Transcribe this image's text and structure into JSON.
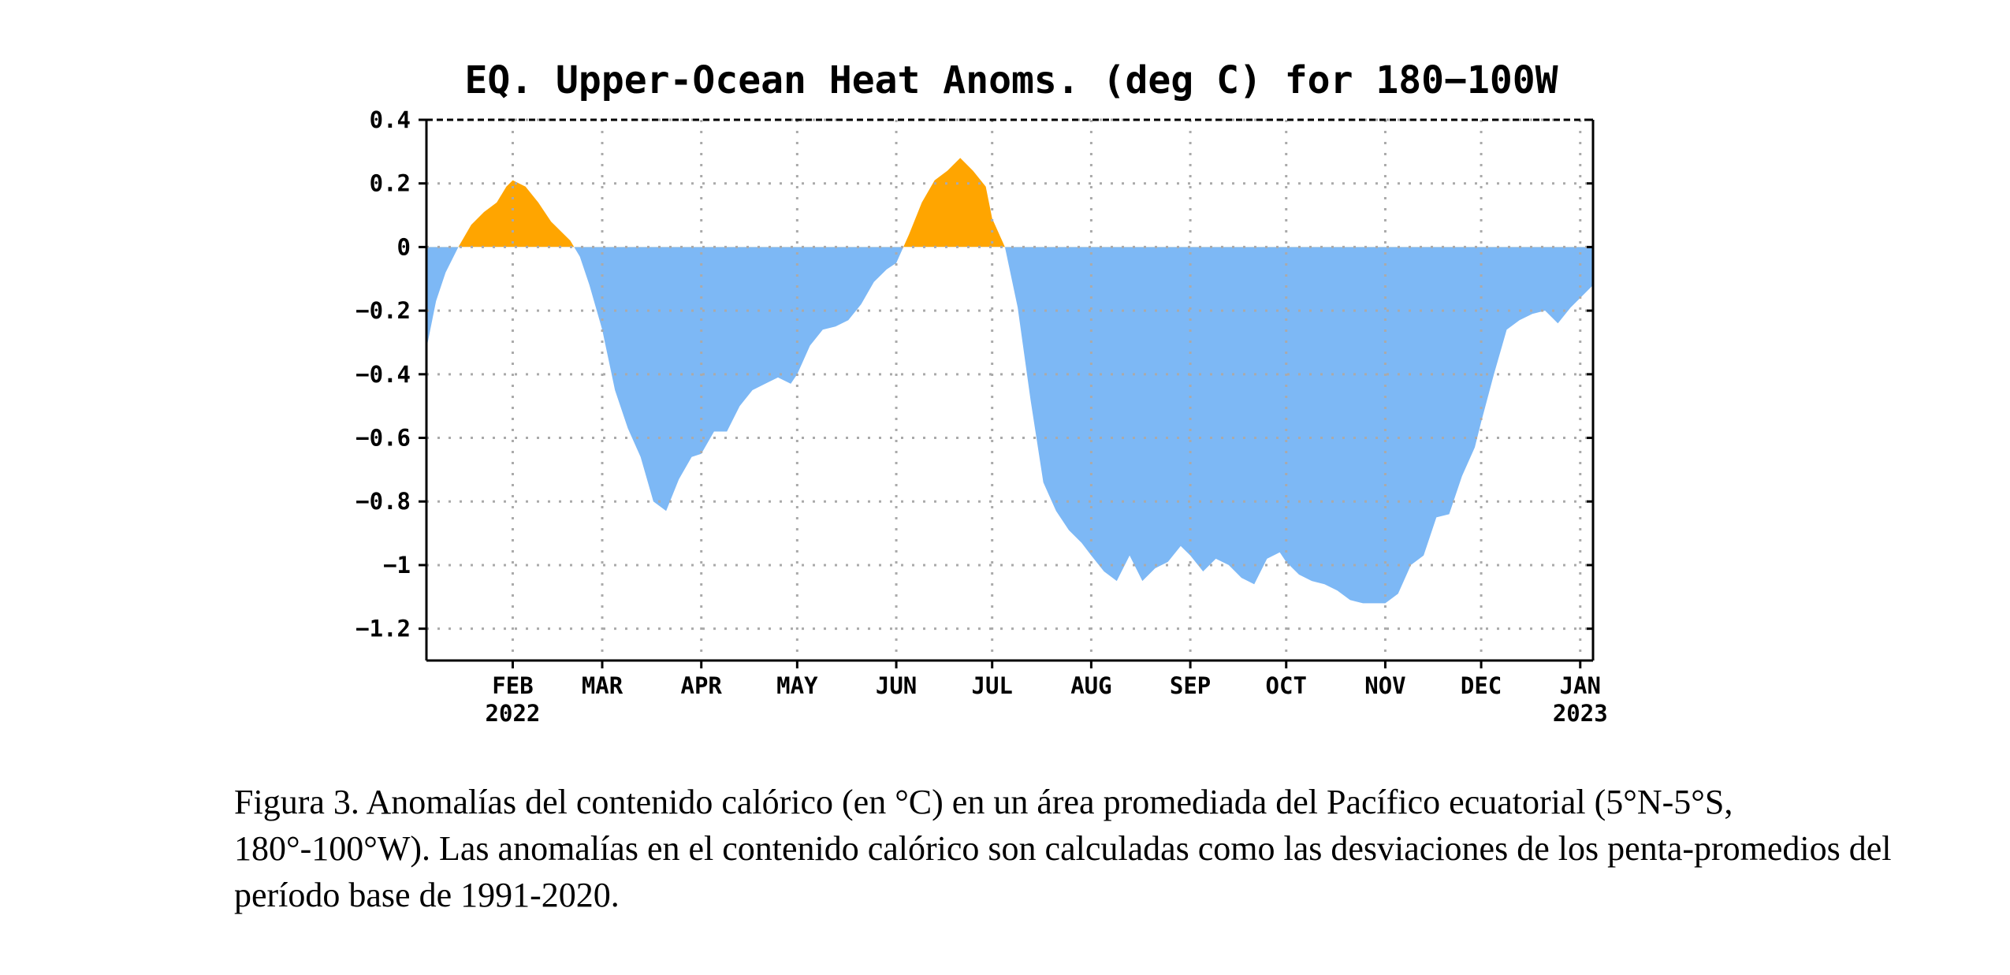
{
  "chart_data": {
    "type": "area",
    "title": "EQ. Upper-Ocean Heat Anoms. (deg C) for 180−100W",
    "xlabel": "",
    "ylabel": "",
    "x_range": [
      "2022-01-05",
      "2023-01-05"
    ],
    "ylim": [
      -1.3,
      0.4
    ],
    "yticks": [
      0.4,
      0.2,
      0,
      -0.2,
      -0.4,
      -0.6,
      -0.8,
      -1,
      -1.2
    ],
    "ytick_labels": [
      "0.4",
      "0.2",
      "0",
      "−0.2",
      "−0.4",
      "−0.6",
      "−0.8",
      "−1",
      "−1.2"
    ],
    "xticks": [
      {
        "date": "2022-02-01",
        "label": "FEB",
        "sublabel": "2022"
      },
      {
        "date": "2022-03-01",
        "label": "MAR",
        "sublabel": ""
      },
      {
        "date": "2022-04-01",
        "label": "APR",
        "sublabel": ""
      },
      {
        "date": "2022-05-01",
        "label": "MAY",
        "sublabel": ""
      },
      {
        "date": "2022-06-01",
        "label": "JUN",
        "sublabel": ""
      },
      {
        "date": "2022-07-01",
        "label": "JUL",
        "sublabel": ""
      },
      {
        "date": "2022-08-01",
        "label": "AUG",
        "sublabel": ""
      },
      {
        "date": "2022-09-01",
        "label": "SEP",
        "sublabel": ""
      },
      {
        "date": "2022-10-01",
        "label": "OCT",
        "sublabel": ""
      },
      {
        "date": "2022-11-01",
        "label": "NOV",
        "sublabel": ""
      },
      {
        "date": "2022-12-01",
        "label": "DEC",
        "sublabel": ""
      },
      {
        "date": "2023-01-01",
        "label": "JAN",
        "sublabel": "2023"
      }
    ],
    "grid": true,
    "colors": {
      "positive": "#ffa500",
      "negative": "#7db8f5"
    },
    "series": [
      {
        "x": [
          "2022-01-05",
          "2022-01-08",
          "2022-01-11",
          "2022-01-15",
          "2022-01-19",
          "2022-01-23",
          "2022-01-27",
          "2022-01-30",
          "2022-02-01",
          "2022-02-05",
          "2022-02-09",
          "2022-02-13",
          "2022-02-17",
          "2022-02-19",
          "2022-02-22",
          "2022-02-25",
          "2022-03-01",
          "2022-03-05",
          "2022-03-09",
          "2022-03-13",
          "2022-03-17",
          "2022-03-21",
          "2022-03-25",
          "2022-03-29",
          "2022-04-01",
          "2022-04-05",
          "2022-04-09",
          "2022-04-13",
          "2022-04-17",
          "2022-04-21",
          "2022-04-25",
          "2022-04-29",
          "2022-05-01",
          "2022-05-05",
          "2022-05-09",
          "2022-05-13",
          "2022-05-17",
          "2022-05-21",
          "2022-05-25",
          "2022-05-29",
          "2022-06-01",
          "2022-06-05",
          "2022-06-09",
          "2022-06-13",
          "2022-06-17",
          "2022-06-21",
          "2022-06-25",
          "2022-06-29",
          "2022-07-01",
          "2022-07-05",
          "2022-07-09",
          "2022-07-13",
          "2022-07-17",
          "2022-07-21",
          "2022-07-25",
          "2022-07-29",
          "2022-08-01",
          "2022-08-05",
          "2022-08-09",
          "2022-08-13",
          "2022-08-17",
          "2022-08-21",
          "2022-08-25",
          "2022-08-29",
          "2022-09-01",
          "2022-09-05",
          "2022-09-09",
          "2022-09-13",
          "2022-09-17",
          "2022-09-21",
          "2022-09-25",
          "2022-09-29",
          "2022-10-01",
          "2022-10-05",
          "2022-10-09",
          "2022-10-13",
          "2022-10-17",
          "2022-10-21",
          "2022-10-25",
          "2022-10-29",
          "2022-11-01",
          "2022-11-05",
          "2022-11-09",
          "2022-11-13",
          "2022-11-17",
          "2022-11-21",
          "2022-11-25",
          "2022-11-29",
          "2022-12-01",
          "2022-12-05",
          "2022-12-09",
          "2022-12-13",
          "2022-12-17",
          "2022-12-21",
          "2022-12-25",
          "2022-12-29",
          "2023-01-01",
          "2023-01-05"
        ],
        "y": [
          -0.32,
          -0.17,
          -0.08,
          0.0,
          0.07,
          0.11,
          0.14,
          0.19,
          0.21,
          0.19,
          0.14,
          0.08,
          0.04,
          0.02,
          -0.03,
          -0.12,
          -0.26,
          -0.45,
          -0.57,
          -0.66,
          -0.8,
          -0.83,
          -0.73,
          -0.66,
          -0.65,
          -0.58,
          -0.58,
          -0.5,
          -0.45,
          -0.43,
          -0.41,
          -0.43,
          -0.4,
          -0.31,
          -0.26,
          -0.25,
          -0.23,
          -0.18,
          -0.11,
          -0.07,
          -0.05,
          0.04,
          0.14,
          0.21,
          0.24,
          0.28,
          0.24,
          0.19,
          0.09,
          0.0,
          -0.19,
          -0.48,
          -0.74,
          -0.83,
          -0.89,
          -0.93,
          -0.97,
          -1.02,
          -1.05,
          -0.97,
          -1.05,
          -1.01,
          -0.99,
          -0.94,
          -0.97,
          -1.02,
          -0.98,
          -1.0,
          -1.04,
          -1.06,
          -0.98,
          -0.96,
          -0.99,
          -1.03,
          -1.05,
          -1.06,
          -1.08,
          -1.11,
          -1.12,
          -1.12,
          -1.12,
          -1.09,
          -1.0,
          -0.97,
          -0.85,
          -0.84,
          -0.72,
          -0.63,
          -0.55,
          -0.4,
          -0.26,
          -0.23,
          -0.21,
          -0.2,
          -0.24,
          -0.19,
          -0.16,
          -0.12
        ]
      }
    ]
  },
  "caption": {
    "text": "Figura 3. Anomalías del contenido calórico (en °C) en un área promediada del Pacífico ecuatorial (5°N-5°S, 180°-100°W). Las anomalías en el contenido calórico son calculadas como las desviaciones de los penta-promedios del período base de 1991-2020."
  }
}
